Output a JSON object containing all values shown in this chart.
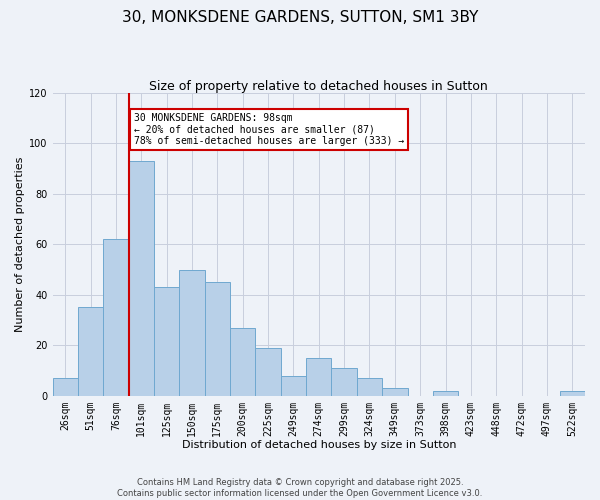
{
  "title": "30, MONKSDENE GARDENS, SUTTON, SM1 3BY",
  "subtitle": "Size of property relative to detached houses in Sutton",
  "xlabel": "Distribution of detached houses by size in Sutton",
  "ylabel": "Number of detached properties",
  "bar_labels": [
    "26sqm",
    "51sqm",
    "76sqm",
    "101sqm",
    "125sqm",
    "150sqm",
    "175sqm",
    "200sqm",
    "225sqm",
    "249sqm",
    "274sqm",
    "299sqm",
    "324sqm",
    "349sqm",
    "373sqm",
    "398sqm",
    "423sqm",
    "448sqm",
    "472sqm",
    "497sqm",
    "522sqm"
  ],
  "bar_values": [
    7,
    35,
    62,
    93,
    43,
    50,
    45,
    27,
    19,
    8,
    15,
    11,
    7,
    3,
    0,
    2,
    0,
    0,
    0,
    0,
    2
  ],
  "bar_color": "#b8d0e8",
  "bar_edgecolor": "#6fa8d0",
  "vline_index": 3,
  "vline_color": "#cc0000",
  "ylim": [
    0,
    120
  ],
  "yticks": [
    0,
    20,
    40,
    60,
    80,
    100,
    120
  ],
  "annotation_text": "30 MONKSDENE GARDENS: 98sqm\n← 20% of detached houses are smaller (87)\n78% of semi-detached houses are larger (333) →",
  "annotation_box_color": "#ffffff",
  "annotation_box_edgecolor": "#cc0000",
  "footer_line1": "Contains HM Land Registry data © Crown copyright and database right 2025.",
  "footer_line2": "Contains public sector information licensed under the Open Government Licence v3.0.",
  "background_color": "#eef2f8",
  "grid_color": "#c8cedd",
  "title_fontsize": 11,
  "subtitle_fontsize": 9,
  "xlabel_fontsize": 8,
  "ylabel_fontsize": 8,
  "tick_fontsize": 7,
  "annotation_fontsize": 7,
  "footer_fontsize": 6
}
